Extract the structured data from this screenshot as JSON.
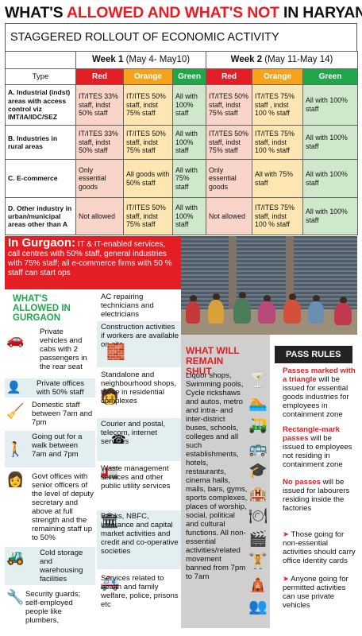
{
  "headline": {
    "part1": "WHAT'S ",
    "part2": "ALLOWED AND WHAT'S NOT",
    "part3": " IN HARYANA"
  },
  "subhead": "STAGGERED ROLLOUT OF ECONOMIC ACTIVITY",
  "table": {
    "week1": {
      "label": "Week 1",
      "dates": " (May 4- May10)"
    },
    "week2": {
      "label": "Week 2",
      "dates": " (May 11-May 14)"
    },
    "type_label": "Type",
    "levels": [
      "Red",
      "Orange",
      "Green",
      "Red",
      "Orange",
      "Green"
    ],
    "rows": [
      {
        "label": "A. Industrial (indst) areas with access control viz IMT/IA/IDC/SEZ",
        "cells": [
          "IT/ITES 33% staff, indst 50% staff",
          "IT/ITES 50% staff, indst 75% staff",
          "All with 100% staff",
          "IT/ITES 50% staff, indst 75% staff",
          "IT/ITES 75% staff , indst 100 % staff",
          "All with 100% staff"
        ]
      },
      {
        "label": "B. Industries in rural areas",
        "cells": [
          "IT/ITES 33% staff, indst 50% staff",
          "IT/ITES 50% staff, indst 75% staff",
          "All with 100% staff",
          "IT/ITES 50% staff, indst 75% staff",
          "IT/ITES 75% staff, indst 100 % staff",
          "All with 100% staff"
        ]
      },
      {
        "label": "C. E-commerce",
        "cells": [
          "Only essential goods",
          "All goods with 50% staff",
          "All with 75% staff",
          "Only essential goods",
          "All with 75% staff",
          "All with 100% staff"
        ]
      },
      {
        "label": "D. Other industry in urban/municipal areas other than A",
        "cells": [
          "Not allowed",
          "IT/ITES 50% staff, indst 75% staff",
          "All with 100% staff",
          "Not allowed",
          "IT/ITES 75% staff, indst 100 % staff",
          "All with 100% staff"
        ]
      }
    ]
  },
  "gurgaon": {
    "lead": "In Gurgaon:",
    "text": " IT & IT-enabled services, call centres with 50% staff, general industries with 75% staff; all e-commerce firms with 50 % staff can start ops"
  },
  "allowed": {
    "title": "WHAT'S ALLOWED IN GURGAON",
    "items": [
      "Private vehicles and cabs with 2 passengers in the rear seat",
      "Private offices with 50% staff",
      "Domestic staff between 7am and 7pm",
      "Going out for a walk between 7am and 7pm",
      "Govt offices with senior officers of the level of deputy secretary and above at full strength and the remaining staff up to 50%",
      "Cold storage and warehousing facilities",
      "Security guards; self-employed people like plumbers,"
    ],
    "items2": [
      "AC repairing technicians and electricians",
      "Construction activities if workers are available on site",
      "Standalone and neighbourhood shops, those in residential complexes",
      "Courier and postal, telecom, internet services",
      "Waste management services and other public utility services",
      "Banks, NBFC, insurance and capital market activities and credit and co-operative societies",
      "Services related to health and family welfare, police, prisons etc"
    ]
  },
  "shut": {
    "title": "WHAT WILL REMAIN SHUT",
    "text": "Liquor shops, Swimming pools, Cycle rickshaws and autos, metro and intra- and inter-district buses, schools, colleges and all such establishments, hotels, restaurants, cinema halls, malls, bars, gyms, sports complexes, places of worship, social, political and cultural functions. All non-essential activities/related movement banned from 7pm to 7am"
  },
  "pass": {
    "title": "PASS RULES",
    "r1a": "Passes marked with a triangle",
    "r1b": " will be issued for essential goods industries for employees in containment zone",
    "r2a": "Rectangle-mark passes",
    "r2b": " will be issued to employees not residing in containment zone",
    "r3a": "No passes",
    "r3b": " will be issued for labourers residing inside the factories",
    "r4": " Those going for non-essential activities should carry office identity cards",
    "r5": " Anyone going for permitted activities can use private vehicles"
  },
  "colors": {
    "red": "#e31e24",
    "orange": "#f7a21b",
    "green": "#1fa74a"
  },
  "icons": [
    "car-icon",
    "person-icon",
    "broom-icon",
    "walking-person-icon",
    "office-worker-icon",
    "forklift-icon",
    "tools-icon",
    "bricks-icon",
    "shopkeeper-icon",
    "phone-icon",
    "garbage-truck-icon",
    "bank-icon",
    "ambulance-icon",
    "cocktail-icon",
    "swimmer-icon",
    "rickshaw-icon",
    "bus-icon",
    "graduation-cap-icon",
    "hotel-icon",
    "restaurant-icon",
    "cinema-icon",
    "gym-icon",
    "temple-icon",
    "crowd-icon"
  ]
}
